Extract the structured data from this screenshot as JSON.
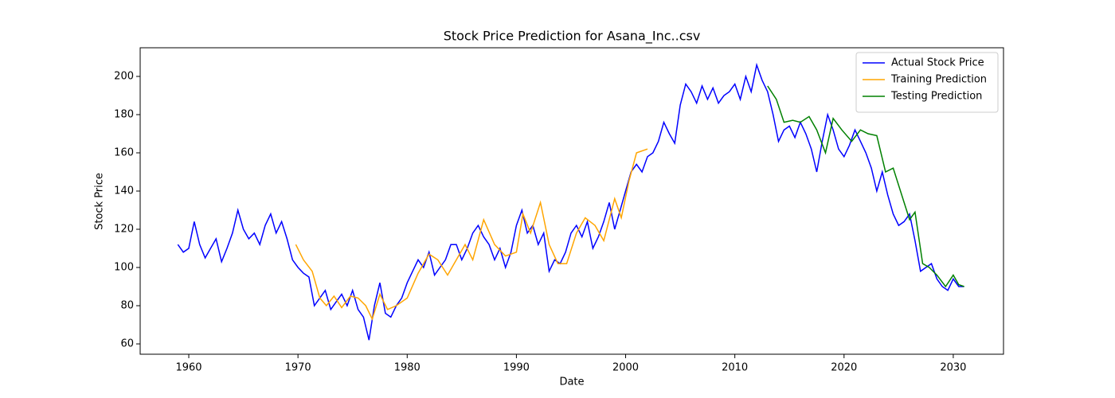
{
  "chart_data": {
    "type": "line",
    "title": "Stock Price Prediction for Asana_Inc..csv",
    "x_label": "Date",
    "y_label": "Stock Price",
    "xlim": [
      1955.55,
      2034.6
    ],
    "ylim": [
      54.6,
      215
    ],
    "xticks": [
      1960,
      1970,
      1980,
      1990,
      2000,
      2010,
      2020,
      2030
    ],
    "yticks": [
      60,
      80,
      100,
      120,
      140,
      160,
      180,
      200
    ],
    "legend": "upper right",
    "series": [
      {
        "name": "Actual Stock Price",
        "color": "#0000ff",
        "x": [
          1959.0,
          1959.5,
          1960.0,
          1960.5,
          1961.0,
          1961.5,
          1962.0,
          1962.5,
          1963.0,
          1963.5,
          1964.0,
          1964.5,
          1965.0,
          1965.5,
          1966.0,
          1966.5,
          1967.0,
          1967.5,
          1968.0,
          1968.5,
          1969.0,
          1969.5,
          1970.0,
          1970.5,
          1971.0,
          1971.5,
          1972.0,
          1972.5,
          1973.0,
          1973.5,
          1974.0,
          1974.5,
          1975.0,
          1975.5,
          1976.0,
          1976.5,
          1977.0,
          1977.5,
          1978.0,
          1978.5,
          1979.0,
          1979.5,
          1980.0,
          1980.5,
          1981.0,
          1981.5,
          1982.0,
          1982.5,
          1983.0,
          1983.5,
          1984.0,
          1984.5,
          1985.0,
          1985.5,
          1986.0,
          1986.5,
          1987.0,
          1987.5,
          1988.0,
          1988.5,
          1989.0,
          1989.5,
          1990.0,
          1990.5,
          1991.0,
          1991.5,
          1992.0,
          1992.5,
          1993.0,
          1993.5,
          1994.0,
          1994.5,
          1995.0,
          1995.5,
          1996.0,
          1996.5,
          1997.0,
          1997.5,
          1998.0,
          1998.5,
          1999.0,
          1999.5,
          2000.0,
          2000.5,
          2001.0,
          2001.5,
          2002.0,
          2002.5,
          2003.0,
          2003.5,
          2004.0,
          2004.5,
          2005.0,
          2005.5,
          2006.0,
          2006.5,
          2007.0,
          2007.5,
          2008.0,
          2008.5,
          2009.0,
          2009.5,
          2010.0,
          2010.5,
          2011.0,
          2011.5,
          2012.0,
          2012.5,
          2013.0,
          2013.5,
          2014.0,
          2014.5,
          2015.0,
          2015.5,
          2016.0,
          2016.5,
          2017.0,
          2017.5,
          2018.0,
          2018.5,
          2019.0,
          2019.5,
          2020.0,
          2020.5,
          2021.0,
          2021.5,
          2022.0,
          2022.5,
          2023.0,
          2023.5,
          2024.0,
          2024.5,
          2025.0,
          2025.5,
          2026.0,
          2026.5,
          2027.0,
          2027.5,
          2028.0,
          2028.5,
          2029.0,
          2029.5,
          2030.0,
          2030.5,
          2031.0
        ],
        "values": [
          112,
          108,
          110,
          124,
          112,
          105,
          110,
          115,
          103,
          110,
          118,
          130,
          120,
          115,
          118,
          112,
          122,
          128,
          118,
          124,
          115,
          104,
          100,
          97,
          95,
          80,
          84,
          88,
          78,
          82,
          86,
          80,
          88,
          78,
          74,
          62,
          80,
          92,
          76,
          74,
          80,
          84,
          92,
          98,
          104,
          100,
          108,
          96,
          100,
          104,
          112,
          112,
          104,
          110,
          118,
          122,
          116,
          112,
          104,
          110,
          100,
          108,
          122,
          130,
          118,
          122,
          112,
          118,
          98,
          104,
          102,
          108,
          118,
          122,
          116,
          124,
          110,
          116,
          124,
          134,
          120,
          130,
          140,
          150,
          154,
          150,
          158,
          160,
          166,
          176,
          170,
          165,
          185,
          196,
          192,
          186,
          195,
          188,
          194,
          186,
          190,
          192,
          196,
          188,
          200,
          192,
          206,
          198,
          192,
          180,
          166,
          172,
          174,
          168,
          176,
          170,
          162,
          150,
          166,
          180,
          172,
          162,
          158,
          164,
          172,
          166,
          160,
          152,
          140,
          150,
          138,
          128,
          122,
          124,
          128,
          114,
          98,
          100,
          102,
          94,
          90,
          88,
          94,
          90,
          90
        ]
      },
      {
        "name": "Training Prediction",
        "color": "#ffa500",
        "x": [
          1969.8,
          1970.5,
          1971.3,
          1972.0,
          1972.6,
          1973.3,
          1974.0,
          1974.8,
          1975.5,
          1976.2,
          1976.8,
          1977.5,
          1978.2,
          1979.0,
          1980.0,
          1981.0,
          1982.0,
          1982.8,
          1983.7,
          1984.5,
          1985.3,
          1986.0,
          1987.0,
          1988.0,
          1989.0,
          1990.0,
          1990.6,
          1991.3,
          1992.2,
          1993.0,
          1993.8,
          1994.6,
          1995.5,
          1996.3,
          1997.2,
          1998.0,
          1999.0,
          1999.6,
          2000.3,
          2001.0,
          2002.0
        ],
        "values": [
          112,
          104,
          98,
          84,
          80,
          85,
          79,
          85,
          84,
          80,
          73,
          86,
          78,
          80,
          84,
          97,
          107,
          104,
          96,
          104,
          112,
          104,
          125,
          112,
          106,
          108,
          128,
          118,
          134,
          112,
          102,
          102,
          118,
          126,
          122,
          114,
          136,
          126,
          145,
          160,
          162
        ]
      },
      {
        "name": "Testing Prediction",
        "color": "#008000",
        "x": [
          2013.0,
          2013.8,
          2014.5,
          2015.3,
          2016.0,
          2016.8,
          2017.5,
          2018.3,
          2019.0,
          2019.8,
          2020.7,
          2021.5,
          2022.2,
          2023.0,
          2023.8,
          2024.5,
          2025.5,
          2026.0,
          2026.5,
          2027.2,
          2027.8,
          2028.5,
          2029.3,
          2030.0,
          2030.5,
          2031.0
        ],
        "values": [
          195,
          188,
          176,
          177,
          176,
          179,
          172,
          160,
          178,
          172,
          166,
          172,
          170,
          169,
          150,
          152,
          134,
          125,
          129,
          102,
          100,
          96,
          90,
          96,
          91,
          90
        ]
      }
    ]
  }
}
